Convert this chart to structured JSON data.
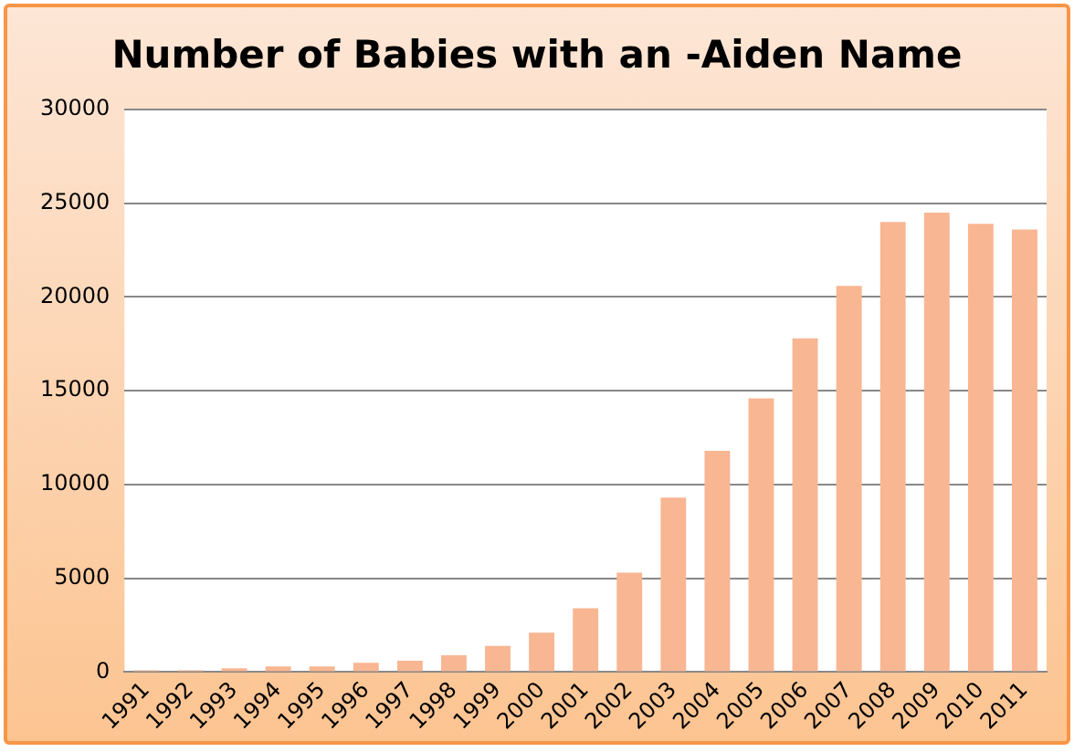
{
  "chart_data": {
    "type": "bar",
    "title": "Number of Babies with an -Aiden Name",
    "categories": [
      "1991",
      "1992",
      "1993",
      "1994",
      "1995",
      "1996",
      "1997",
      "1998",
      "1999",
      "2000",
      "2001",
      "2002",
      "2003",
      "2004",
      "2005",
      "2006",
      "2007",
      "2008",
      "2009",
      "2010",
      "2011"
    ],
    "values": [
      100,
      100,
      200,
      300,
      300,
      500,
      600,
      900,
      1400,
      2100,
      3400,
      5300,
      9300,
      11800,
      14600,
      17800,
      20600,
      24000,
      24500,
      23900,
      23600
    ],
    "color": "#f8b692",
    "ylim": [
      0,
      30000
    ],
    "yticks": [
      0,
      5000,
      10000,
      15000,
      20000,
      25000,
      30000
    ],
    "grid": "y",
    "legend": false
  }
}
